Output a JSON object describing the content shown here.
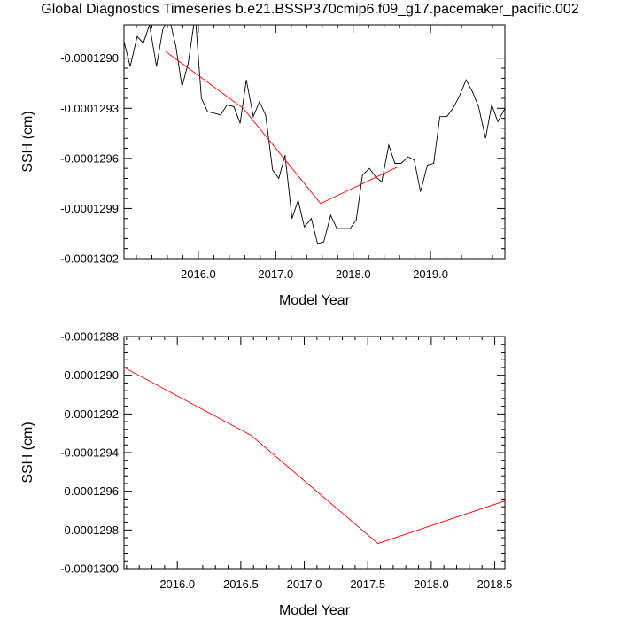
{
  "title": "Global Diagnostics Timeseries b.e21.BSSP370cmip6.f09_g17.pacemaker_pacific.002",
  "chart_data": [
    {
      "type": "line",
      "xlabel": "Model Year",
      "ylabel": "SSH (cm)",
      "xlim": [
        2015.04,
        2019.96
      ],
      "ylim": [
        -0.0001302,
        -0.0001288
      ],
      "xticks": [
        2016.0,
        2017.0,
        2018.0,
        2019.0
      ],
      "xtick_labels": [
        "2016.0",
        "2017.0",
        "2018.0",
        "2019.0"
      ],
      "yticks": [
        -0.0001302,
        -0.0001299,
        -0.0001296,
        -0.0001293,
        -0.000129
      ],
      "ytick_labels": [
        "-0.0001302",
        "-0.0001299",
        "-0.0001296",
        "-0.0001293",
        "-0.0001290"
      ],
      "series": [
        {
          "color": "#000000",
          "x": [
            2015.04,
            2015.12,
            2015.21,
            2015.29,
            2015.37,
            2015.46,
            2015.54,
            2015.62,
            2015.71,
            2015.79,
            2015.87,
            2015.96,
            2016.04,
            2016.12,
            2016.21,
            2016.29,
            2016.37,
            2016.46,
            2016.54,
            2016.62,
            2016.71,
            2016.79,
            2016.87,
            2016.96,
            2017.04,
            2017.12,
            2017.21,
            2017.29,
            2017.37,
            2017.46,
            2017.54,
            2017.62,
            2017.71,
            2017.79,
            2017.87,
            2017.96,
            2018.04,
            2018.12,
            2018.21,
            2018.29,
            2018.37,
            2018.46,
            2018.54,
            2018.62,
            2018.71,
            2018.79,
            2018.87,
            2018.96,
            2019.04,
            2019.12,
            2019.21,
            2019.29,
            2019.37,
            2019.46,
            2019.54,
            2019.62,
            2019.71,
            2019.79,
            2019.87,
            2019.96
          ],
          "y": [
            -0.0001289,
            -0.00012905,
            -0.00012887,
            -0.00012891,
            -0.0001288,
            -0.00012905,
            -0.00012883,
            -0.00012875,
            -0.00012893,
            -0.00012917,
            -0.00012903,
            -0.00012874,
            -0.00012924,
            -0.00012932,
            -0.00012933,
            -0.00012934,
            -0.00012928,
            -0.00012929,
            -0.00012939,
            -0.00012913,
            -0.00012935,
            -0.00012926,
            -0.00012934,
            -0.00012967,
            -0.00012972,
            -0.00012958,
            -0.00012996,
            -0.00012985,
            -0.00013001,
            -0.00012996,
            -0.00013011,
            -0.0001301,
            -0.00012994,
            -0.00013002,
            -0.00013002,
            -0.00013002,
            -0.00012997,
            -0.0001297,
            -0.00012966,
            -0.00012971,
            -0.00012974,
            -0.00012952,
            -0.00012963,
            -0.00012963,
            -0.00012959,
            -0.00012961,
            -0.0001298,
            -0.00012964,
            -0.00012963,
            -0.00012935,
            -0.00012935,
            -0.0001293,
            -0.00012923,
            -0.00012913,
            -0.0001292,
            -0.00012929,
            -0.00012948,
            -0.00012928,
            -0.00012938,
            -0.0001293
          ]
        },
        {
          "color": "#ff0000",
          "x": [
            2015.58,
            2016.58,
            2017.58,
            2018.58
          ],
          "y": [
            -0.00012896,
            -0.0001293,
            -0.00012987,
            -0.00012965
          ]
        }
      ]
    },
    {
      "type": "line",
      "xlabel": "Model Year",
      "ylabel": "SSH (cm)",
      "xlim": [
        2015.58,
        2018.58
      ],
      "ylim": [
        -0.00013,
        -0.0001288
      ],
      "xticks": [
        2016.0,
        2016.5,
        2017.0,
        2017.5,
        2018.0,
        2018.5
      ],
      "xtick_labels": [
        "2016.0",
        "2016.5",
        "2017.0",
        "2017.5",
        "2018.0",
        "2018.5"
      ],
      "yticks": [
        -0.00013,
        -0.0001298,
        -0.0001296,
        -0.0001294,
        -0.0001292,
        -0.000129,
        -0.0001288
      ],
      "ytick_labels": [
        "-0.0001300",
        "-0.0001298",
        "-0.0001296",
        "-0.0001294",
        "-0.0001292",
        "-0.0001290",
        "-0.0001288"
      ],
      "series": [
        {
          "color": "#ff0000",
          "x": [
            2015.58,
            2016.58,
            2017.58,
            2018.58
          ],
          "y": [
            -0.00012896,
            -0.00012931,
            -0.00012987,
            -0.00012965
          ]
        }
      ]
    }
  ]
}
